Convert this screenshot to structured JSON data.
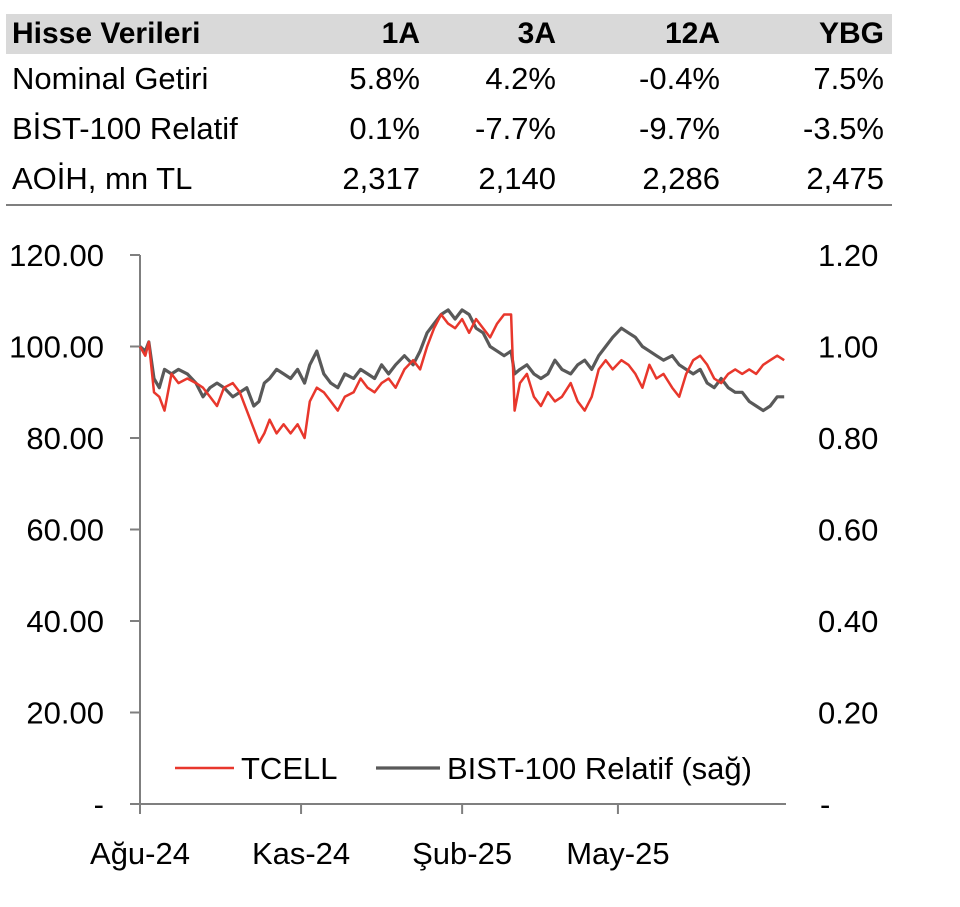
{
  "table": {
    "header": {
      "label": "Hisse Verileri",
      "cols": [
        "1A",
        "3A",
        "12A",
        "YBG"
      ]
    },
    "rows": [
      {
        "label": "Nominal Getiri",
        "values": [
          "5.8%",
          "4.2%",
          "-0.4%",
          "7.5%"
        ]
      },
      {
        "label": "BİST-100 Relatif",
        "values": [
          "0.1%",
          "-7.7%",
          "-9.7%",
          "-3.5%"
        ]
      },
      {
        "label": "AOİH, mn TL",
        "values": [
          "2,317",
          "2,140",
          "2,286",
          "2,475"
        ]
      }
    ]
  },
  "chart_data": {
    "type": "line",
    "title": "",
    "x_ticks": [
      "Ağu-24",
      "Kas-24",
      "Şub-25",
      "May-25"
    ],
    "x_tick_dates": [
      "2024-08-01",
      "2024-11-01",
      "2025-02-01",
      "2025-05-01"
    ],
    "x_range": [
      "2024-08-01",
      "2025-08-05"
    ],
    "y_left": {
      "ticks": [
        "-",
        "20.00",
        "40.00",
        "60.00",
        "80.00",
        "100.00",
        "120.00"
      ],
      "range": [
        0,
        120
      ]
    },
    "y_right": {
      "ticks": [
        "-",
        "0.20",
        "0.40",
        "0.60",
        "0.80",
        "1.00",
        "1.20"
      ],
      "range": [
        0,
        1.2
      ]
    },
    "grid": false,
    "legend": "bottom-center",
    "series": [
      {
        "name": "TCELL",
        "axis": "left",
        "color": "#e8372c",
        "points": [
          [
            "2024-08-01",
            100
          ],
          [
            "2024-08-04",
            98
          ],
          [
            "2024-08-06",
            101
          ],
          [
            "2024-08-09",
            90
          ],
          [
            "2024-08-12",
            89
          ],
          [
            "2024-08-15",
            86
          ],
          [
            "2024-08-19",
            94
          ],
          [
            "2024-08-23",
            92
          ],
          [
            "2024-08-28",
            93
          ],
          [
            "2024-09-02",
            92
          ],
          [
            "2024-09-06",
            91
          ],
          [
            "2024-09-10",
            89
          ],
          [
            "2024-09-14",
            87
          ],
          [
            "2024-09-18",
            91
          ],
          [
            "2024-09-23",
            92
          ],
          [
            "2024-09-27",
            90
          ],
          [
            "2024-10-01",
            86
          ],
          [
            "2024-10-05",
            82
          ],
          [
            "2024-10-08",
            79
          ],
          [
            "2024-10-11",
            81
          ],
          [
            "2024-10-14",
            84
          ],
          [
            "2024-10-18",
            81
          ],
          [
            "2024-10-22",
            83
          ],
          [
            "2024-10-26",
            81
          ],
          [
            "2024-10-30",
            83
          ],
          [
            "2024-11-03",
            80
          ],
          [
            "2024-11-06",
            88
          ],
          [
            "2024-11-10",
            91
          ],
          [
            "2024-11-14",
            90
          ],
          [
            "2024-11-18",
            88
          ],
          [
            "2024-11-22",
            86
          ],
          [
            "2024-11-26",
            89
          ],
          [
            "2024-12-01",
            90
          ],
          [
            "2024-12-05",
            93
          ],
          [
            "2024-12-09",
            91
          ],
          [
            "2024-12-13",
            90
          ],
          [
            "2024-12-17",
            92
          ],
          [
            "2024-12-21",
            93
          ],
          [
            "2024-12-25",
            91
          ],
          [
            "2024-12-30",
            95
          ],
          [
            "2025-01-04",
            97
          ],
          [
            "2025-01-08",
            95
          ],
          [
            "2025-01-12",
            100
          ],
          [
            "2025-01-16",
            104
          ],
          [
            "2025-01-20",
            107
          ],
          [
            "2025-01-24",
            105
          ],
          [
            "2025-01-28",
            104
          ],
          [
            "2025-02-01",
            106
          ],
          [
            "2025-02-05",
            103
          ],
          [
            "2025-02-09",
            106
          ],
          [
            "2025-02-13",
            104
          ],
          [
            "2025-02-17",
            102
          ],
          [
            "2025-02-21",
            105
          ],
          [
            "2025-02-25",
            107
          ],
          [
            "2025-03-01",
            107
          ],
          [
            "2025-03-03",
            86
          ],
          [
            "2025-03-06",
            92
          ],
          [
            "2025-03-10",
            94
          ],
          [
            "2025-03-14",
            89
          ],
          [
            "2025-03-18",
            87
          ],
          [
            "2025-03-22",
            90
          ],
          [
            "2025-03-26",
            88
          ],
          [
            "2025-03-30",
            89
          ],
          [
            "2025-04-04",
            92
          ],
          [
            "2025-04-08",
            88
          ],
          [
            "2025-04-12",
            86
          ],
          [
            "2025-04-16",
            89
          ],
          [
            "2025-04-20",
            95
          ],
          [
            "2025-04-24",
            97
          ],
          [
            "2025-04-28",
            95
          ],
          [
            "2025-05-03",
            97
          ],
          [
            "2025-05-07",
            96
          ],
          [
            "2025-05-11",
            94
          ],
          [
            "2025-05-15",
            91
          ],
          [
            "2025-05-19",
            96
          ],
          [
            "2025-05-23",
            93
          ],
          [
            "2025-05-27",
            94
          ],
          [
            "2025-06-01",
            91
          ],
          [
            "2025-06-05",
            89
          ],
          [
            "2025-06-09",
            94
          ],
          [
            "2025-06-13",
            97
          ],
          [
            "2025-06-17",
            98
          ],
          [
            "2025-06-21",
            96
          ],
          [
            "2025-06-25",
            93
          ],
          [
            "2025-06-29",
            92
          ],
          [
            "2025-07-03",
            94
          ],
          [
            "2025-07-07",
            95
          ],
          [
            "2025-07-11",
            94
          ],
          [
            "2025-07-15",
            95
          ],
          [
            "2025-07-19",
            94
          ],
          [
            "2025-07-23",
            96
          ],
          [
            "2025-07-27",
            97
          ],
          [
            "2025-07-31",
            98
          ],
          [
            "2025-08-04",
            97
          ]
        ]
      },
      {
        "name": "BIST-100 Relatif (sağ)",
        "axis": "right",
        "color": "#595959",
        "points": [
          [
            "2024-08-01",
            1.0
          ],
          [
            "2024-08-04",
            0.99
          ],
          [
            "2024-08-06",
            1.01
          ],
          [
            "2024-08-09",
            0.93
          ],
          [
            "2024-08-12",
            0.91
          ],
          [
            "2024-08-15",
            0.95
          ],
          [
            "2024-08-19",
            0.94
          ],
          [
            "2024-08-23",
            0.95
          ],
          [
            "2024-08-28",
            0.94
          ],
          [
            "2024-09-02",
            0.92
          ],
          [
            "2024-09-06",
            0.89
          ],
          [
            "2024-09-10",
            0.91
          ],
          [
            "2024-09-14",
            0.92
          ],
          [
            "2024-09-18",
            0.91
          ],
          [
            "2024-09-23",
            0.89
          ],
          [
            "2024-09-27",
            0.9
          ],
          [
            "2024-10-01",
            0.91
          ],
          [
            "2024-10-05",
            0.87
          ],
          [
            "2024-10-08",
            0.88
          ],
          [
            "2024-10-11",
            0.92
          ],
          [
            "2024-10-14",
            0.93
          ],
          [
            "2024-10-18",
            0.95
          ],
          [
            "2024-10-22",
            0.94
          ],
          [
            "2024-10-26",
            0.93
          ],
          [
            "2024-10-30",
            0.95
          ],
          [
            "2024-11-03",
            0.92
          ],
          [
            "2024-11-06",
            0.96
          ],
          [
            "2024-11-10",
            0.99
          ],
          [
            "2024-11-14",
            0.94
          ],
          [
            "2024-11-18",
            0.92
          ],
          [
            "2024-11-22",
            0.91
          ],
          [
            "2024-11-26",
            0.94
          ],
          [
            "2024-12-01",
            0.93
          ],
          [
            "2024-12-05",
            0.95
          ],
          [
            "2024-12-09",
            0.94
          ],
          [
            "2024-12-13",
            0.93
          ],
          [
            "2024-12-17",
            0.96
          ],
          [
            "2024-12-21",
            0.94
          ],
          [
            "2024-12-25",
            0.96
          ],
          [
            "2024-12-30",
            0.98
          ],
          [
            "2025-01-04",
            0.96
          ],
          [
            "2025-01-08",
            0.99
          ],
          [
            "2025-01-12",
            1.03
          ],
          [
            "2025-01-16",
            1.05
          ],
          [
            "2025-01-20",
            1.07
          ],
          [
            "2025-01-24",
            1.08
          ],
          [
            "2025-01-28",
            1.06
          ],
          [
            "2025-02-01",
            1.08
          ],
          [
            "2025-02-05",
            1.07
          ],
          [
            "2025-02-09",
            1.04
          ],
          [
            "2025-02-13",
            1.03
          ],
          [
            "2025-02-17",
            1.0
          ],
          [
            "2025-02-21",
            0.99
          ],
          [
            "2025-02-25",
            0.98
          ],
          [
            "2025-03-01",
            0.99
          ],
          [
            "2025-03-03",
            0.94
          ],
          [
            "2025-03-06",
            0.95
          ],
          [
            "2025-03-10",
            0.96
          ],
          [
            "2025-03-14",
            0.94
          ],
          [
            "2025-03-18",
            0.93
          ],
          [
            "2025-03-22",
            0.94
          ],
          [
            "2025-03-26",
            0.97
          ],
          [
            "2025-03-30",
            0.95
          ],
          [
            "2025-04-04",
            0.94
          ],
          [
            "2025-04-08",
            0.96
          ],
          [
            "2025-04-12",
            0.97
          ],
          [
            "2025-04-16",
            0.95
          ],
          [
            "2025-04-20",
            0.98
          ],
          [
            "2025-04-24",
            1.0
          ],
          [
            "2025-04-28",
            1.02
          ],
          [
            "2025-05-03",
            1.04
          ],
          [
            "2025-05-07",
            1.03
          ],
          [
            "2025-05-11",
            1.02
          ],
          [
            "2025-05-15",
            1.0
          ],
          [
            "2025-05-19",
            0.99
          ],
          [
            "2025-05-23",
            0.98
          ],
          [
            "2025-05-27",
            0.97
          ],
          [
            "2025-06-01",
            0.98
          ],
          [
            "2025-06-05",
            0.96
          ],
          [
            "2025-06-09",
            0.95
          ],
          [
            "2025-06-13",
            0.94
          ],
          [
            "2025-06-17",
            0.95
          ],
          [
            "2025-06-21",
            0.92
          ],
          [
            "2025-06-25",
            0.91
          ],
          [
            "2025-06-29",
            0.93
          ],
          [
            "2025-07-03",
            0.91
          ],
          [
            "2025-07-07",
            0.9
          ],
          [
            "2025-07-11",
            0.9
          ],
          [
            "2025-07-15",
            0.88
          ],
          [
            "2025-07-19",
            0.87
          ],
          [
            "2025-07-23",
            0.86
          ],
          [
            "2025-07-27",
            0.87
          ],
          [
            "2025-07-31",
            0.89
          ],
          [
            "2025-08-04",
            0.89
          ]
        ]
      }
    ],
    "legend_labels": [
      "TCELL",
      "BIST-100 Relatif (sağ)"
    ]
  }
}
